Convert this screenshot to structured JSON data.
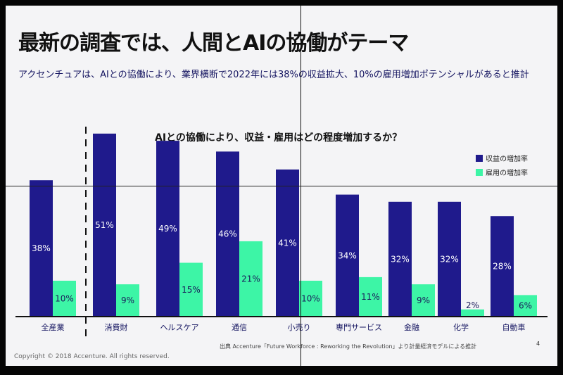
{
  "slide": {
    "title": "最新の調査では、人間とAIの協働がテーマ",
    "subtitle": "アクセンチュアは、AIとの協働により、業界横断で2022年には38%の収益拡大、10%の雇用増加ポテンシャルがあると推計",
    "source": "出典 Accenture「Future Workforce : Reworking the Revolution」より計量経済モデルによる推計",
    "copyright": "Copyright © 2018 Accenture. All rights reserved.",
    "page_number": "4"
  },
  "chart_data": {
    "type": "bar",
    "title": "AIとの協働により、収益・雇用はどの程度増加するか？",
    "categories": [
      "全産業",
      "消費財",
      "ヘルスケア",
      "通信",
      "小売り",
      "専門サービス",
      "金融",
      "化学",
      "自動車"
    ],
    "series": [
      {
        "name": "収益の増加率",
        "color": "#1f1a8c",
        "values": [
          38,
          51,
          49,
          46,
          41,
          34,
          32,
          32,
          28
        ]
      },
      {
        "name": "雇用の増加率",
        "color": "#3df5a6",
        "values": [
          10,
          9,
          15,
          21,
          10,
          11,
          9,
          2,
          6
        ]
      }
    ],
    "unit": "%",
    "ylim": [
      0,
      55
    ],
    "legend": "top-right",
    "grid": false
  }
}
